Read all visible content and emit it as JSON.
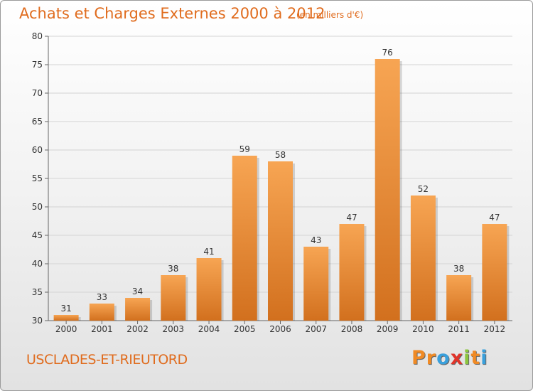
{
  "chart_data": {
    "type": "bar",
    "title": "Achats et Charges Externes 2000 à 2012",
    "unit_note": "(en milliers d'€)",
    "categories": [
      "2000",
      "2001",
      "2002",
      "2003",
      "2004",
      "2005",
      "2006",
      "2007",
      "2008",
      "2009",
      "2010",
      "2011",
      "2012"
    ],
    "values": [
      31,
      33,
      34,
      38,
      41,
      59,
      58,
      43,
      47,
      76,
      52,
      38,
      47
    ],
    "ylim": [
      30,
      80
    ],
    "yticks": [
      30,
      35,
      40,
      45,
      50,
      55,
      60,
      65,
      70,
      75,
      80
    ],
    "grid": true,
    "xlabel": "",
    "ylabel": "",
    "bar_color_top": "#f7a553",
    "bar_color_bottom": "#d2701e"
  },
  "footer": {
    "commune": "USCLADES-ET-RIEUTORD",
    "logo_letters": [
      "P",
      "r",
      "o",
      "x",
      "i",
      "t",
      "i"
    ],
    "logo_colors": [
      "#f08a24",
      "#f08a24",
      "#3aa0dc",
      "#e0342a",
      "#8cc63f",
      "#f08a24",
      "#3aa0dc"
    ]
  }
}
